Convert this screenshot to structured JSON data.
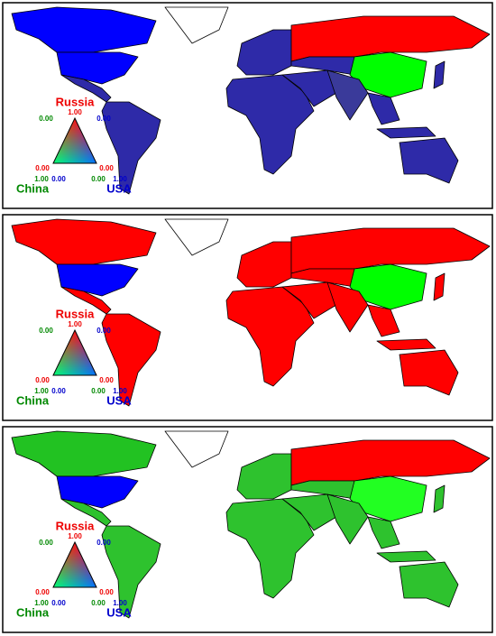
{
  "panels": [
    {
      "legend": {
        "top": "Russia",
        "left": "China",
        "right": "USA",
        "ticks": [
          "1.00",
          "0.00",
          "0.00",
          "0.00",
          "1.00",
          "0.00",
          "0.00",
          "0.00",
          "1.00"
        ]
      }
    },
    {
      "legend": {
        "top": "Russia",
        "left": "China",
        "right": "USA",
        "ticks": [
          "1.00",
          "0.00",
          "0.00",
          "0.00",
          "1.00",
          "0.00",
          "0.00",
          "0.00",
          "1.00"
        ]
      }
    },
    {
      "legend": {
        "top": "Russia",
        "left": "China",
        "right": "USA",
        "ticks": [
          "1.00",
          "0.00",
          "0.00",
          "0.00",
          "1.00",
          "0.00",
          "0.00",
          "0.00",
          "1.00"
        ]
      }
    }
  ]
}
